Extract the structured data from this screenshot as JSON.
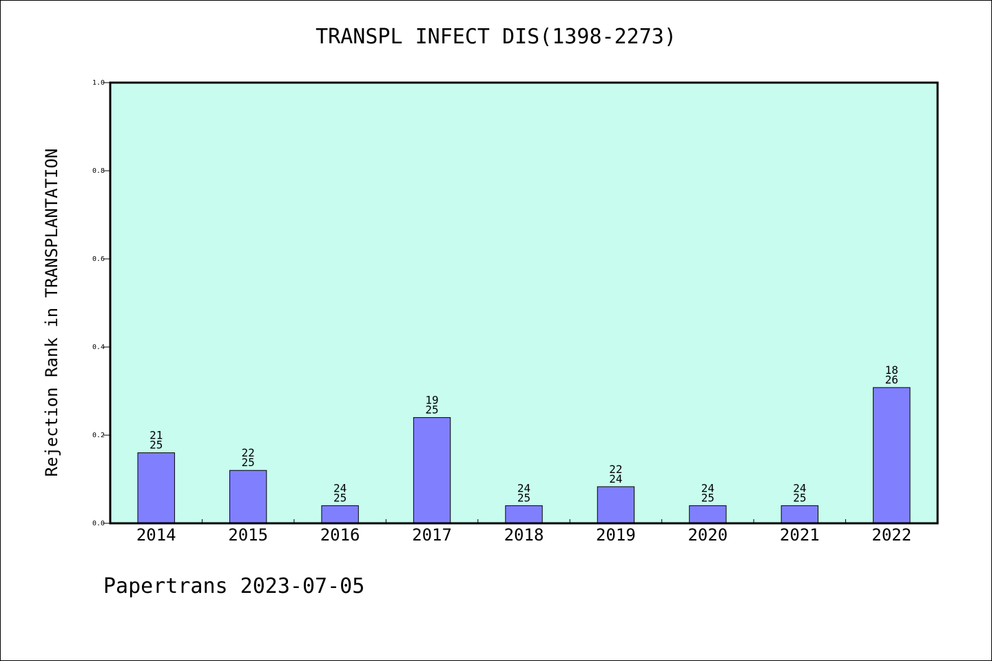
{
  "chart_data": {
    "type": "bar",
    "title": "TRANSPL INFECT DIS(1398-2273)",
    "ylabel": "Rejection Rank in TRANSPLANTATION",
    "xlabel": "",
    "ylim": [
      0,
      1.0
    ],
    "yticks": [
      "0.0",
      "0.2",
      "0.4",
      "0.6",
      "0.8",
      "1.0"
    ],
    "ytick_values": [
      0,
      0.2,
      0.4,
      0.6,
      0.8,
      1.0
    ],
    "categories": [
      "2014",
      "2015",
      "2016",
      "2017",
      "2018",
      "2019",
      "2020",
      "2021",
      "2022"
    ],
    "values": [
      0.16,
      0.12,
      0.04,
      0.24,
      0.04,
      0.083,
      0.04,
      0.04,
      0.308
    ],
    "label_top": [
      "21",
      "22",
      "24",
      "19",
      "24",
      "22",
      "24",
      "24",
      "18"
    ],
    "label_bottom": [
      "25",
      "25",
      "25",
      "25",
      "25",
      "24",
      "25",
      "25",
      "26"
    ],
    "grid": false,
    "colors": {
      "plot_background": "#c8fcee",
      "bar_fill": "#8080ff",
      "bar_stroke": "#000000",
      "axis": "#000000"
    }
  },
  "footer": "Papertrans 2023-07-05"
}
